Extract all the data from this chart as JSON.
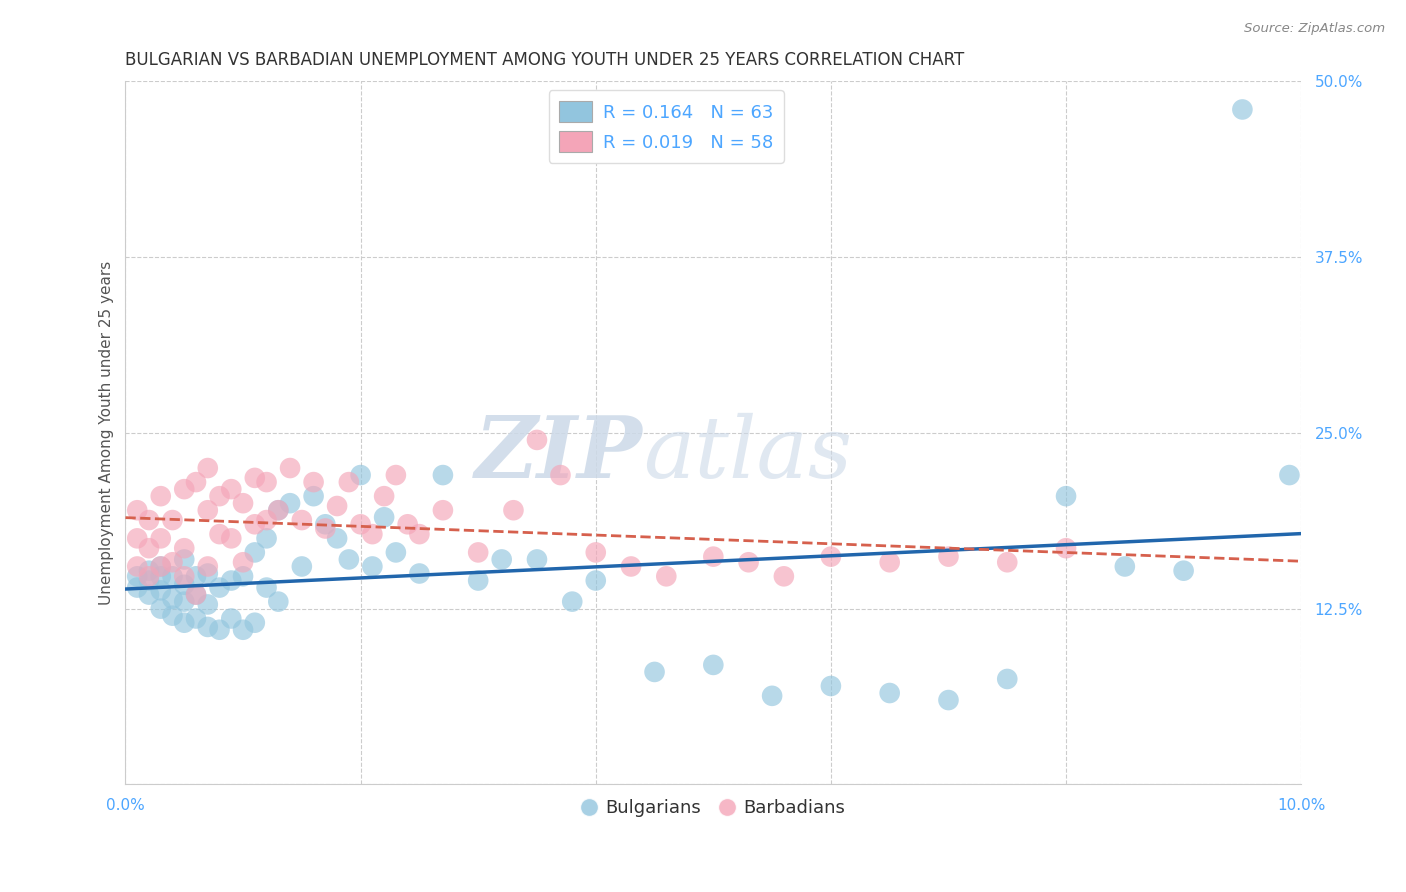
{
  "title": "BULGARIAN VS BARBADIAN UNEMPLOYMENT AMONG YOUTH UNDER 25 YEARS CORRELATION CHART",
  "source": "Source: ZipAtlas.com",
  "ylabel": "Unemployment Among Youth under 25 years",
  "xlim": [
    0.0,
    0.1
  ],
  "ylim": [
    0.0,
    0.5
  ],
  "xticks": [
    0.0,
    0.02,
    0.04,
    0.06,
    0.08,
    0.1
  ],
  "xticklabels": [
    "0.0%",
    "",
    "",
    "",
    "",
    "10.0%"
  ],
  "yticks": [
    0.0,
    0.125,
    0.25,
    0.375,
    0.5
  ],
  "yticklabels": [
    "",
    "12.5%",
    "25.0%",
    "37.5%",
    "50.0%"
  ],
  "legend_label1": "R = 0.164   N = 63",
  "legend_label2": "R = 0.019   N = 58",
  "legend_bottom_label1": "Bulgarians",
  "legend_bottom_label2": "Barbadians",
  "blue_color": "#92c5de",
  "pink_color": "#f4a5b8",
  "blue_line_color": "#2166ac",
  "pink_line_color": "#d6604d",
  "watermark_zip": "ZIP",
  "watermark_atlas": "atlas",
  "bg_color": "#ffffff",
  "title_fontsize": 12,
  "axis_label_fontsize": 11,
  "tick_fontsize": 11,
  "tick_color": "#4da6ff",
  "bulgarians_x": [
    0.001,
    0.001,
    0.002,
    0.002,
    0.002,
    0.003,
    0.003,
    0.003,
    0.003,
    0.004,
    0.004,
    0.004,
    0.005,
    0.005,
    0.005,
    0.005,
    0.006,
    0.006,
    0.006,
    0.007,
    0.007,
    0.007,
    0.008,
    0.008,
    0.009,
    0.009,
    0.01,
    0.01,
    0.011,
    0.011,
    0.012,
    0.012,
    0.013,
    0.013,
    0.014,
    0.015,
    0.016,
    0.017,
    0.018,
    0.019,
    0.02,
    0.021,
    0.022,
    0.023,
    0.025,
    0.027,
    0.03,
    0.032,
    0.035,
    0.038,
    0.04,
    0.045,
    0.05,
    0.055,
    0.06,
    0.065,
    0.07,
    0.075,
    0.08,
    0.085,
    0.09,
    0.095,
    0.099
  ],
  "bulgarians_y": [
    0.14,
    0.148,
    0.135,
    0.145,
    0.152,
    0.125,
    0.138,
    0.148,
    0.155,
    0.12,
    0.132,
    0.148,
    0.115,
    0.13,
    0.142,
    0.16,
    0.118,
    0.135,
    0.148,
    0.112,
    0.128,
    0.15,
    0.11,
    0.14,
    0.118,
    0.145,
    0.11,
    0.148,
    0.115,
    0.165,
    0.14,
    0.175,
    0.13,
    0.195,
    0.2,
    0.155,
    0.205,
    0.185,
    0.175,
    0.16,
    0.22,
    0.155,
    0.19,
    0.165,
    0.15,
    0.22,
    0.145,
    0.16,
    0.16,
    0.13,
    0.145,
    0.08,
    0.085,
    0.063,
    0.07,
    0.065,
    0.06,
    0.075,
    0.205,
    0.155,
    0.152,
    0.48,
    0.22
  ],
  "barbadians_x": [
    0.001,
    0.001,
    0.001,
    0.002,
    0.002,
    0.002,
    0.003,
    0.003,
    0.003,
    0.004,
    0.004,
    0.005,
    0.005,
    0.005,
    0.006,
    0.006,
    0.007,
    0.007,
    0.007,
    0.008,
    0.008,
    0.009,
    0.009,
    0.01,
    0.01,
    0.011,
    0.011,
    0.012,
    0.012,
    0.013,
    0.014,
    0.015,
    0.016,
    0.017,
    0.018,
    0.019,
    0.02,
    0.021,
    0.022,
    0.023,
    0.024,
    0.025,
    0.027,
    0.03,
    0.033,
    0.035,
    0.037,
    0.04,
    0.043,
    0.046,
    0.05,
    0.053,
    0.056,
    0.06,
    0.065,
    0.07,
    0.075,
    0.08
  ],
  "barbadians_y": [
    0.155,
    0.175,
    0.195,
    0.148,
    0.168,
    0.188,
    0.155,
    0.175,
    0.205,
    0.158,
    0.188,
    0.148,
    0.168,
    0.21,
    0.135,
    0.215,
    0.155,
    0.195,
    0.225,
    0.178,
    0.205,
    0.175,
    0.21,
    0.158,
    0.2,
    0.185,
    0.218,
    0.188,
    0.215,
    0.195,
    0.225,
    0.188,
    0.215,
    0.182,
    0.198,
    0.215,
    0.185,
    0.178,
    0.205,
    0.22,
    0.185,
    0.178,
    0.195,
    0.165,
    0.195,
    0.245,
    0.22,
    0.165,
    0.155,
    0.148,
    0.162,
    0.158,
    0.148,
    0.162,
    0.158,
    0.162,
    0.158,
    0.168
  ]
}
